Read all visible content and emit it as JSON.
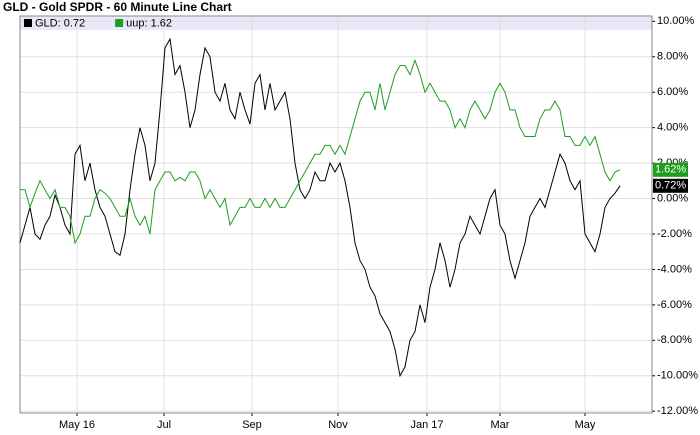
{
  "chart_data": {
    "type": "line",
    "title": "GLD - Gold SPDR - 60 Minute Line Chart",
    "x": [
      0,
      1,
      2,
      3,
      4,
      5,
      6,
      7,
      8,
      9,
      10,
      11,
      12,
      13,
      14,
      15,
      16,
      17,
      18,
      19,
      20,
      21,
      22,
      23,
      24,
      25,
      26,
      27,
      28,
      29,
      30,
      31,
      32,
      33,
      34,
      35,
      36,
      37,
      38,
      39,
      40,
      41,
      42,
      43,
      44,
      45,
      46,
      47,
      48,
      49,
      50,
      51,
      52,
      53,
      54,
      55,
      56,
      57,
      58,
      59,
      60,
      61,
      62,
      63,
      64,
      65,
      66,
      67,
      68,
      69,
      70,
      71,
      72,
      73,
      74,
      75,
      76,
      77,
      78,
      79,
      80,
      81,
      82,
      83,
      84,
      85,
      86,
      87,
      88,
      89,
      90,
      91,
      92,
      93,
      94,
      95,
      96,
      97,
      98,
      99,
      100,
      101,
      102,
      103,
      104,
      105,
      106,
      107,
      108,
      109,
      110,
      111,
      112,
      113,
      114,
      115,
      116,
      117,
      118,
      119,
      120
    ],
    "series": [
      {
        "name": "GLD: 0.72",
        "color": "#000000",
        "end_label": "0.72%",
        "values": [
          -2.5,
          -1.5,
          -0.5,
          -2.0,
          -2.3,
          -1.5,
          -1.0,
          0.2,
          -0.5,
          -1.5,
          -2.0,
          2.5,
          3.0,
          1.0,
          2.0,
          0.5,
          -0.5,
          -1.0,
          -2.0,
          -3.0,
          -3.2,
          -2.0,
          0.5,
          2.5,
          4.0,
          3.0,
          1.0,
          2.0,
          5.0,
          8.5,
          9.0,
          7.0,
          7.5,
          6.0,
          4.0,
          5.0,
          7.0,
          8.5,
          8.0,
          6.0,
          5.5,
          6.5,
          5.0,
          4.5,
          6.0,
          5.0,
          4.2,
          6.5,
          7.0,
          5.0,
          6.5,
          5.0,
          5.5,
          6.0,
          4.5,
          2.0,
          0.5,
          0.0,
          0.5,
          1.5,
          1.0,
          1.0,
          2.0,
          1.5,
          2.0,
          1.0,
          -0.5,
          -2.5,
          -3.5,
          -4.0,
          -5.0,
          -5.5,
          -6.5,
          -7.0,
          -7.5,
          -8.5,
          -10.0,
          -9.5,
          -8.0,
          -7.5,
          -6.0,
          -7.0,
          -5.0,
          -4.0,
          -2.5,
          -3.5,
          -5.0,
          -4.0,
          -2.5,
          -2.0,
          -1.0,
          -1.5,
          -2.0,
          -1.0,
          0.0,
          0.5,
          -1.5,
          -2.0,
          -3.5,
          -4.5,
          -3.5,
          -2.5,
          -1.0,
          -0.5,
          0.0,
          -0.5,
          0.5,
          1.5,
          2.5,
          2.0,
          1.0,
          0.5,
          1.0,
          -2.0,
          -2.5,
          -3.0,
          -2.0,
          -0.5,
          0.0,
          0.3,
          0.72
        ]
      },
      {
        "name": "uup: 1.62",
        "color": "#1e9e1e",
        "end_label": "1.62%",
        "values": [
          0.5,
          0.5,
          -0.5,
          0.3,
          1.0,
          0.5,
          0.0,
          0.5,
          -0.5,
          -0.5,
          -1.0,
          -2.5,
          -2.0,
          -1.0,
          -1.0,
          0.0,
          0.5,
          0.3,
          0.0,
          -0.5,
          -1.0,
          -1.0,
          0.0,
          -1.0,
          -1.5,
          -1.0,
          -2.0,
          0.5,
          1.0,
          1.5,
          1.5,
          1.0,
          1.2,
          1.0,
          1.5,
          1.5,
          1.0,
          0.0,
          0.5,
          0.0,
          -0.5,
          0.0,
          -1.5,
          -1.0,
          -0.5,
          -0.5,
          0.0,
          -0.5,
          -0.5,
          0.0,
          -0.5,
          0.0,
          -0.5,
          -0.5,
          0.0,
          0.5,
          1.0,
          1.5,
          2.0,
          2.5,
          2.5,
          3.0,
          3.0,
          2.5,
          3.0,
          2.5,
          3.5,
          4.5,
          5.5,
          6.0,
          6.0,
          5.0,
          6.5,
          5.0,
          6.0,
          7.0,
          7.5,
          7.5,
          7.0,
          7.8,
          7.0,
          6.0,
          6.5,
          6.0,
          5.5,
          5.5,
          5.0,
          4.0,
          4.5,
          4.0,
          5.0,
          5.5,
          5.0,
          4.5,
          5.0,
          6.0,
          6.5,
          6.0,
          5.0,
          5.0,
          4.0,
          3.5,
          3.5,
          3.5,
          4.5,
          5.0,
          5.0,
          5.5,
          5.0,
          3.5,
          3.5,
          3.0,
          3.0,
          3.5,
          3.0,
          3.5,
          2.5,
          1.5,
          1.0,
          1.5,
          1.62
        ]
      }
    ],
    "xlim": [
      0,
      126.4
    ],
    "xticks": [
      {
        "value": 11.4,
        "label": "May 16"
      },
      {
        "value": 28.8,
        "label": "Jul"
      },
      {
        "value": 46.4,
        "label": "Sep"
      },
      {
        "value": 63.6,
        "label": "Nov"
      },
      {
        "value": 81.4,
        "label": "Jan 17"
      },
      {
        "value": 96,
        "label": "Mar"
      },
      {
        "value": 113,
        "label": "May"
      }
    ],
    "ylim": [
      -12.1,
      10.3
    ],
    "yticks": [
      {
        "value": 10,
        "label": "10.00%"
      },
      {
        "value": 8,
        "label": "8.00%"
      },
      {
        "value": 6,
        "label": "6.00%"
      },
      {
        "value": 4,
        "label": "4.00%"
      },
      {
        "value": 2,
        "label": "2.00%"
      },
      {
        "value": 0,
        "label": "0.00%"
      },
      {
        "value": -2,
        "label": "-2.00%"
      },
      {
        "value": -4,
        "label": "-4.00%"
      },
      {
        "value": -6,
        "label": "-6.00%"
      },
      {
        "value": -8,
        "label": "-8.00%"
      },
      {
        "value": -10,
        "label": "-10.00%"
      },
      {
        "value": -12,
        "label": "-12.00%"
      }
    ],
    "grid": true,
    "legend": "top-left"
  }
}
